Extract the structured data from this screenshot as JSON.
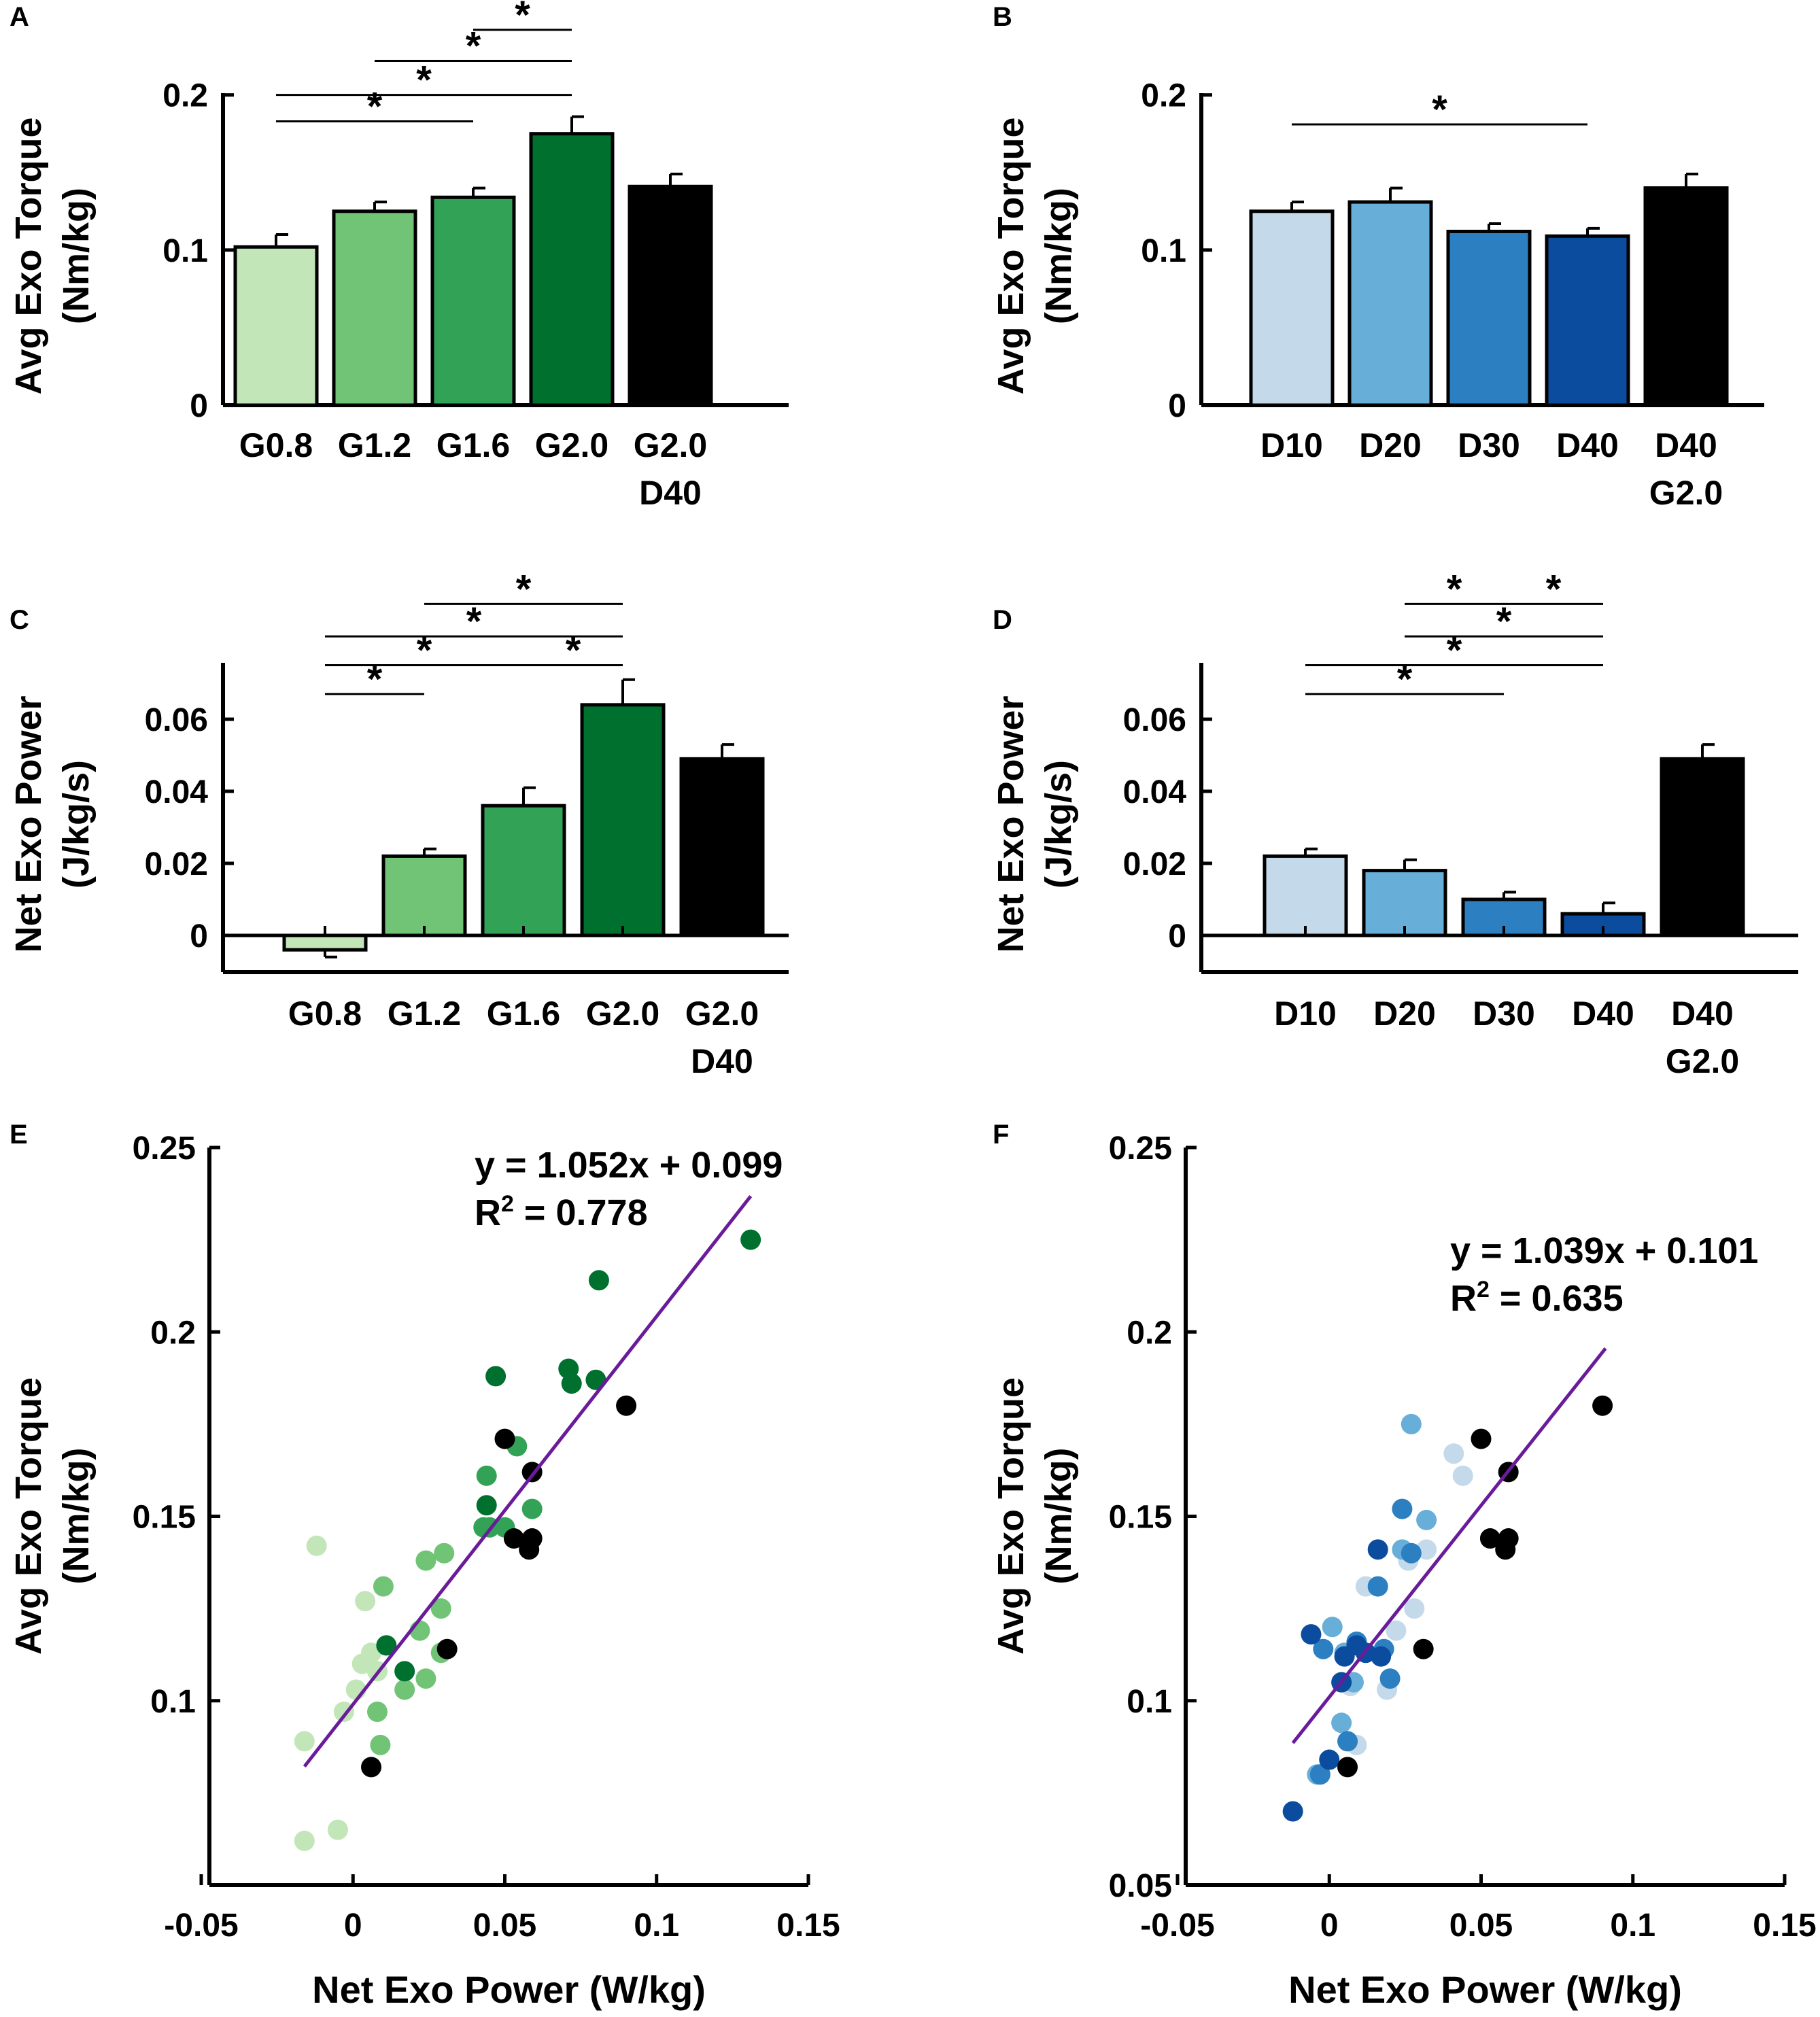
{
  "colors": {
    "green": [
      "#c2e6b8",
      "#71c476",
      "#32a356",
      "#00702f",
      "#000000"
    ],
    "blue": [
      "#c4d9e9",
      "#67aed8",
      "#2c7fc0",
      "#0b4c9e",
      "#000000"
    ],
    "fit_line": "#6a1b9a",
    "axis": "#000000"
  },
  "chart_data": [
    {
      "type": "bar",
      "panel": "A",
      "ylabel": "Avg Exo Torque",
      "yunit": "(Nm/kg)",
      "ylim": [
        0,
        0.2
      ],
      "yticks": [
        0,
        0.1,
        0.2
      ],
      "ytick_labels": [
        "0",
        "0.1",
        "0.2"
      ],
      "categories": [
        [
          "G0.8"
        ],
        [
          "G1.2"
        ],
        [
          "G1.6"
        ],
        [
          "G2.0"
        ],
        [
          "G2.0",
          "D40"
        ]
      ],
      "values": [
        0.102,
        0.125,
        0.134,
        0.175,
        0.141
      ],
      "errors": [
        0.008,
        0.006,
        0.006,
        0.011,
        0.008
      ],
      "palette": "green",
      "significance": [
        {
          "from": 0,
          "to": 2,
          "level": 0.183
        },
        {
          "from": 0,
          "to": 3,
          "level": 0.2
        },
        {
          "from": 1,
          "to": 3,
          "level": 0.222
        },
        {
          "from": 2,
          "to": 3,
          "level": 0.242
        }
      ]
    },
    {
      "type": "bar",
      "panel": "B",
      "ylabel": "Avg Exo Torque",
      "yunit": "(Nm/kg)",
      "ylim": [
        0,
        0.2
      ],
      "yticks": [
        0,
        0.1,
        0.2
      ],
      "ytick_labels": [
        "0",
        "0.1",
        "0.2"
      ],
      "categories": [
        [
          "D10"
        ],
        [
          "D20"
        ],
        [
          "D30"
        ],
        [
          "D40"
        ],
        [
          "D40",
          "G2.0"
        ]
      ],
      "values": [
        0.125,
        0.131,
        0.112,
        0.109,
        0.14
      ],
      "errors": [
        0.006,
        0.009,
        0.005,
        0.005,
        0.009
      ],
      "palette": "blue",
      "significance": [
        {
          "from": 0,
          "to": 3,
          "level": 0.181
        }
      ]
    },
    {
      "type": "bar",
      "panel": "C",
      "ylabel": "Net Exo Power",
      "yunit": "(J/kg/s)",
      "ylim": [
        -0.01,
        0.075
      ],
      "yticks": [
        0,
        0.02,
        0.04,
        0.06
      ],
      "ytick_labels": [
        "0",
        "0.02",
        "0.04",
        "0.06"
      ],
      "categories": [
        [
          "G0.8"
        ],
        [
          "G1.2"
        ],
        [
          "G1.6"
        ],
        [
          "G2.0"
        ],
        [
          "G2.0",
          "D40"
        ]
      ],
      "values": [
        -0.004,
        0.022,
        0.036,
        0.064,
        0.049
      ],
      "errors": [
        0.002,
        0.002,
        0.005,
        0.007,
        0.004
      ],
      "palette": "green",
      "significance": [
        {
          "from": 0,
          "to": 1,
          "level": 0.067
        },
        {
          "from": 0,
          "to": 2,
          "level": 0.075
        },
        {
          "from": 2,
          "to": 3,
          "level": 0.075
        },
        {
          "from": 0,
          "to": 3,
          "level": 0.083
        },
        {
          "from": 1,
          "to": 3,
          "level": 0.092
        }
      ]
    },
    {
      "type": "bar",
      "panel": "D",
      "ylabel": "Net Exo Power",
      "yunit": "(J/kg/s)",
      "ylim": [
        -0.01,
        0.075
      ],
      "yticks": [
        0,
        0.02,
        0.04,
        0.06
      ],
      "ytick_labels": [
        "0",
        "0.02",
        "0.04",
        "0.06"
      ],
      "categories": [
        [
          "D10"
        ],
        [
          "D20"
        ],
        [
          "D30"
        ],
        [
          "D40"
        ],
        [
          "D40",
          "G2.0"
        ]
      ],
      "values": [
        0.022,
        0.018,
        0.01,
        0.006,
        0.049
      ],
      "errors": [
        0.002,
        0.003,
        0.002,
        0.003,
        0.004
      ],
      "palette": "blue",
      "significance": [
        {
          "from": 0,
          "to": 2,
          "level": 0.067
        },
        {
          "from": 0,
          "to": 3,
          "level": 0.075
        },
        {
          "from": 1,
          "to": 3,
          "level": 0.083
        },
        {
          "from": 1,
          "to": 2,
          "level": 0.092
        },
        {
          "from": 2,
          "to": 3,
          "level": 0.092
        }
      ]
    },
    {
      "type": "scatter",
      "panel": "E",
      "xlabel": "Net Exo Power (W/kg)",
      "ylabel": "Avg Exo Torque",
      "yunit": "(Nm/kg)",
      "xlim": [
        -0.05,
        0.15
      ],
      "ylim": [
        0.05,
        0.25
      ],
      "xticks": [
        -0.05,
        0,
        0.05,
        0.1,
        0.15
      ],
      "xtick_labels": [
        "-0.05",
        "0",
        "0.05",
        "0.1",
        "0.15"
      ],
      "yticks": [
        0.1,
        0.15,
        0.2,
        0.25
      ],
      "ytick_labels": [
        "0.1",
        "0.15",
        "0.2",
        "0.25"
      ],
      "palette": "green",
      "equation": "y = 1.052x + 0.099",
      "r2_label": "R",
      "r2_sup": "2",
      "r2_value": " = 0.778",
      "fit": {
        "slope": 1.052,
        "intercept": 0.099,
        "x_range": [
          -0.016,
          0.131
        ]
      },
      "points": [
        {
          "x": -0.016,
          "y": 0.089,
          "g": 0
        },
        {
          "x": -0.016,
          "y": 0.062,
          "g": 0
        },
        {
          "x": -0.012,
          "y": 0.142,
          "g": 0
        },
        {
          "x": -0.005,
          "y": 0.065,
          "g": 0
        },
        {
          "x": -0.003,
          "y": 0.097,
          "g": 0
        },
        {
          "x": 0.001,
          "y": 0.103,
          "g": 0
        },
        {
          "x": 0.004,
          "y": 0.127,
          "g": 0
        },
        {
          "x": 0.006,
          "y": 0.113,
          "g": 0
        },
        {
          "x": 0.003,
          "y": 0.11,
          "g": 0
        },
        {
          "x": 0.008,
          "y": 0.108,
          "g": 0
        },
        {
          "x": 0.01,
          "y": 0.131,
          "g": 1
        },
        {
          "x": 0.008,
          "y": 0.097,
          "g": 1
        },
        {
          "x": 0.009,
          "y": 0.088,
          "g": 1
        },
        {
          "x": 0.017,
          "y": 0.103,
          "g": 1
        },
        {
          "x": 0.022,
          "y": 0.119,
          "g": 1
        },
        {
          "x": 0.024,
          "y": 0.138,
          "g": 1
        },
        {
          "x": 0.029,
          "y": 0.125,
          "g": 1
        },
        {
          "x": 0.03,
          "y": 0.14,
          "g": 1
        },
        {
          "x": 0.029,
          "y": 0.113,
          "g": 1
        },
        {
          "x": 0.024,
          "y": 0.106,
          "g": 1
        },
        {
          "x": 0.044,
          "y": 0.161,
          "g": 2
        },
        {
          "x": 0.045,
          "y": 0.147,
          "g": 2
        },
        {
          "x": 0.05,
          "y": 0.147,
          "g": 2
        },
        {
          "x": 0.054,
          "y": 0.169,
          "g": 2
        },
        {
          "x": 0.059,
          "y": 0.152,
          "g": 2
        },
        {
          "x": 0.043,
          "y": 0.147,
          "g": 2
        },
        {
          "x": 0.011,
          "y": 0.115,
          "g": 3
        },
        {
          "x": 0.017,
          "y": 0.108,
          "g": 3
        },
        {
          "x": 0.044,
          "y": 0.153,
          "g": 3
        },
        {
          "x": 0.047,
          "y": 0.188,
          "g": 3
        },
        {
          "x": 0.071,
          "y": 0.19,
          "g": 3
        },
        {
          "x": 0.072,
          "y": 0.186,
          "g": 3
        },
        {
          "x": 0.08,
          "y": 0.187,
          "g": 3
        },
        {
          "x": 0.081,
          "y": 0.214,
          "g": 3
        },
        {
          "x": 0.131,
          "y": 0.225,
          "g": 3
        },
        {
          "x": 0.006,
          "y": 0.082,
          "g": 4
        },
        {
          "x": 0.031,
          "y": 0.114,
          "g": 4
        },
        {
          "x": 0.05,
          "y": 0.171,
          "g": 4
        },
        {
          "x": 0.053,
          "y": 0.144,
          "g": 4
        },
        {
          "x": 0.058,
          "y": 0.141,
          "g": 4
        },
        {
          "x": 0.059,
          "y": 0.144,
          "g": 4
        },
        {
          "x": 0.059,
          "y": 0.162,
          "g": 4
        },
        {
          "x": 0.09,
          "y": 0.18,
          "g": 4
        }
      ]
    },
    {
      "type": "scatter",
      "panel": "F",
      "xlabel": "Net Exo Power (W/kg)",
      "ylabel": "Avg Exo Torque",
      "yunit": "(Nm/kg)",
      "xlim": [
        -0.05,
        0.15
      ],
      "ylim": [
        0.05,
        0.25
      ],
      "xticks": [
        -0.05,
        0,
        0.05,
        0.1,
        0.15
      ],
      "xtick_labels": [
        "-0.05",
        "0",
        "0.05",
        "0.1",
        "0.15"
      ],
      "yticks": [
        0.05,
        0.1,
        0.15,
        0.2,
        0.25
      ],
      "ytick_labels": [
        "0.05",
        "0.1",
        "0.15",
        "0.2",
        "0.25"
      ],
      "palette": "blue",
      "equation": "y = 1.039x + 0.101",
      "r2_label": "R",
      "r2_sup": "2",
      "r2_value": " = 0.635",
      "fit": {
        "slope": 1.039,
        "intercept": 0.101,
        "x_range": [
          -0.012,
          0.091
        ]
      },
      "points": [
        {
          "x": 0.009,
          "y": 0.088,
          "g": 0
        },
        {
          "x": 0.012,
          "y": 0.131,
          "g": 0
        },
        {
          "x": 0.019,
          "y": 0.103,
          "g": 0
        },
        {
          "x": 0.022,
          "y": 0.119,
          "g": 0
        },
        {
          "x": 0.026,
          "y": 0.138,
          "g": 0
        },
        {
          "x": 0.028,
          "y": 0.125,
          "g": 0
        },
        {
          "x": 0.032,
          "y": 0.141,
          "g": 0
        },
        {
          "x": 0.041,
          "y": 0.167,
          "g": 0
        },
        {
          "x": 0.044,
          "y": 0.161,
          "g": 0
        },
        {
          "x": 0.007,
          "y": 0.104,
          "g": 0
        },
        {
          "x": -0.004,
          "y": 0.08,
          "g": 1
        },
        {
          "x": 0.001,
          "y": 0.12,
          "g": 1
        },
        {
          "x": 0.004,
          "y": 0.094,
          "g": 1
        },
        {
          "x": 0.005,
          "y": 0.113,
          "g": 1
        },
        {
          "x": 0.008,
          "y": 0.105,
          "g": 1
        },
        {
          "x": 0.024,
          "y": 0.141,
          "g": 1
        },
        {
          "x": 0.027,
          "y": 0.175,
          "g": 1
        },
        {
          "x": 0.032,
          "y": 0.149,
          "g": 1
        },
        {
          "x": -0.003,
          "y": 0.08,
          "g": 2
        },
        {
          "x": 0.006,
          "y": 0.089,
          "g": 2
        },
        {
          "x": 0.009,
          "y": 0.116,
          "g": 2
        },
        {
          "x": 0.016,
          "y": 0.131,
          "g": 2
        },
        {
          "x": 0.018,
          "y": 0.114,
          "g": 2
        },
        {
          "x": 0.02,
          "y": 0.106,
          "g": 2
        },
        {
          "x": 0.024,
          "y": 0.152,
          "g": 2
        },
        {
          "x": 0.027,
          "y": 0.14,
          "g": 2
        },
        {
          "x": -0.002,
          "y": 0.114,
          "g": 2
        },
        {
          "x": -0.012,
          "y": 0.07,
          "g": 3
        },
        {
          "x": -0.006,
          "y": 0.118,
          "g": 3
        },
        {
          "x": 0.0,
          "y": 0.084,
          "g": 3
        },
        {
          "x": 0.004,
          "y": 0.105,
          "g": 3
        },
        {
          "x": 0.005,
          "y": 0.112,
          "g": 3
        },
        {
          "x": 0.009,
          "y": 0.115,
          "g": 3
        },
        {
          "x": 0.012,
          "y": 0.113,
          "g": 3
        },
        {
          "x": 0.016,
          "y": 0.141,
          "g": 3
        },
        {
          "x": 0.017,
          "y": 0.112,
          "g": 3
        },
        {
          "x": 0.006,
          "y": 0.082,
          "g": 4
        },
        {
          "x": 0.031,
          "y": 0.114,
          "g": 4
        },
        {
          "x": 0.05,
          "y": 0.171,
          "g": 4
        },
        {
          "x": 0.053,
          "y": 0.144,
          "g": 4
        },
        {
          "x": 0.058,
          "y": 0.141,
          "g": 4
        },
        {
          "x": 0.059,
          "y": 0.144,
          "g": 4
        },
        {
          "x": 0.059,
          "y": 0.162,
          "g": 4
        },
        {
          "x": 0.09,
          "y": 0.18,
          "g": 4
        }
      ]
    }
  ]
}
